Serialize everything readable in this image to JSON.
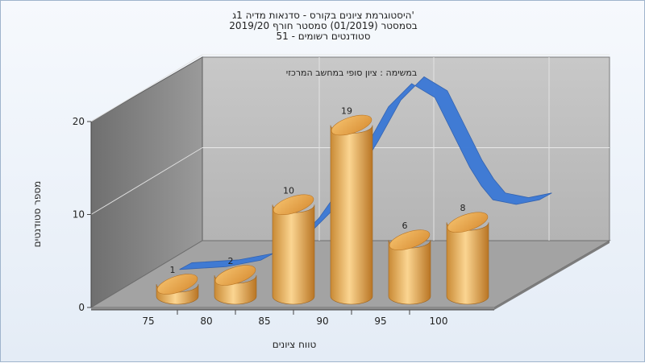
{
  "chart_data": {
    "type": "bar",
    "title_lines": [
      "היסטוגרמת ציונים בקורס - סדנאות מדיה 1ג'",
      "בסמסטר (01/2019) סמסטר חורף 2019/20",
      "סטודנטים רשומים - 51"
    ],
    "annotation": "במשימה : ציון סופי במחשב המרכזי",
    "xlabel": "טווח ציונים",
    "ylabel": "מספר סטודנטים",
    "x_ticks": [
      "75",
      "80",
      "85",
      "90",
      "95",
      "100"
    ],
    "y_ticks": [
      "0",
      "10",
      "20"
    ],
    "ylim": [
      0,
      20
    ],
    "categories": [
      "75",
      "80",
      "85",
      "90",
      "95",
      "100"
    ],
    "values": [
      1,
      2,
      10,
      19,
      6,
      8
    ],
    "data_labels": [
      "1",
      "2",
      "10",
      "19",
      "6",
      "8"
    ],
    "curve": {
      "description_none": "",
      "x": [
        73,
        77,
        80,
        83,
        85,
        87,
        89,
        91,
        93,
        95,
        96,
        97,
        98,
        99,
        100,
        102,
        104
      ],
      "y": [
        0.5,
        0.8,
        1.5,
        3.5,
        6,
        9.5,
        13.5,
        18,
        20.5,
        19,
        16.5,
        14,
        11.5,
        9.5,
        8,
        7.5,
        8
      ]
    },
    "colors": {
      "bar_light": "#fbd591",
      "bar_mid": "#e9a848",
      "bar_dark": "#b97524",
      "curve": "#3a78d6",
      "back_wall": "#b8b8b8",
      "side_wall": "#8a8a8a",
      "floor": "#a0a0a0"
    },
    "grid": true
  }
}
